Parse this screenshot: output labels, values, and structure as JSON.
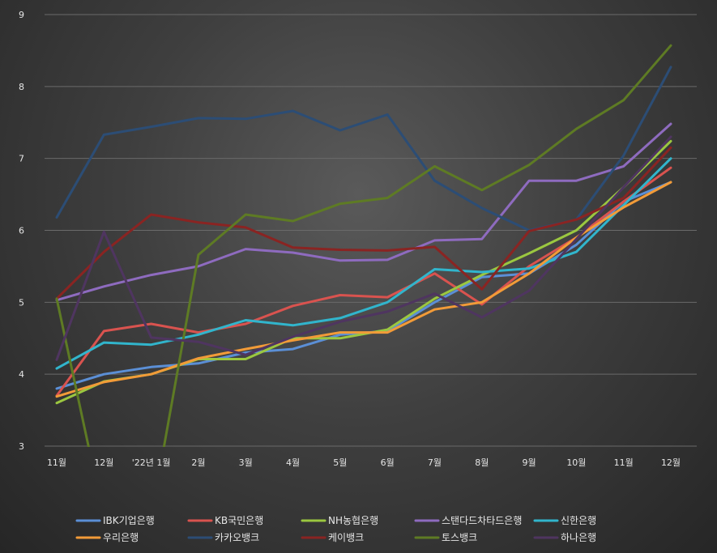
{
  "chart_data": {
    "type": "line",
    "title": "",
    "xlabel": "",
    "ylabel": "",
    "ylim": [
      3,
      9
    ],
    "yticks": [
      "3",
      "4",
      "5",
      "6",
      "7",
      "8",
      "9"
    ],
    "categories": [
      "11월",
      "12월",
      "'22년 1월",
      "2월",
      "3월",
      "4월",
      "5월",
      "6월",
      "7월",
      "8월",
      "9월",
      "10월",
      "11월",
      "12월"
    ],
    "grid": true,
    "legend_position": "bottom",
    "series": [
      {
        "name": "IBK기업은행",
        "color": "#5b8fd6",
        "values": [
          3.8,
          4.0,
          4.1,
          4.15,
          4.3,
          4.35,
          4.55,
          4.6,
          5.0,
          5.35,
          5.4,
          5.8,
          6.4,
          6.67
        ]
      },
      {
        "name": "KB국민은행",
        "color": "#d9534f",
        "values": [
          3.7,
          4.6,
          4.7,
          4.58,
          4.7,
          4.95,
          5.1,
          5.07,
          5.4,
          4.97,
          5.5,
          5.9,
          6.4,
          6.87
        ]
      },
      {
        "name": "NH농협은행",
        "color": "#9bc740",
        "values": [
          3.6,
          3.9,
          4.0,
          4.21,
          4.21,
          4.5,
          4.5,
          4.62,
          5.05,
          5.38,
          5.68,
          6.0,
          6.6,
          7.24
        ]
      },
      {
        "name": "스탠다드차타드은행",
        "color": "#8e6bbf",
        "values": [
          5.03,
          5.22,
          5.38,
          5.5,
          5.74,
          5.69,
          5.58,
          5.59,
          5.86,
          5.88,
          6.69,
          6.69,
          6.89,
          7.48
        ]
      },
      {
        "name": "신한은행",
        "color": "#31b5cc",
        "values": [
          4.08,
          4.44,
          4.41,
          4.55,
          4.75,
          4.68,
          4.78,
          5.0,
          5.46,
          5.42,
          5.47,
          5.7,
          6.35,
          7.0
        ]
      },
      {
        "name": "우리은행",
        "color": "#f29b38",
        "values": [
          3.69,
          3.89,
          4.0,
          4.22,
          4.35,
          4.47,
          4.58,
          4.58,
          4.9,
          5.0,
          5.4,
          5.9,
          6.32,
          6.67
        ]
      },
      {
        "name": "카카오뱅크",
        "color": "#2c4d75",
        "values": [
          6.18,
          7.33,
          7.44,
          7.56,
          7.55,
          7.66,
          7.39,
          7.61,
          6.69,
          6.31,
          6.0,
          6.15,
          7.04,
          8.27
        ]
      },
      {
        "name": "케이뱅크",
        "color": "#8a2422",
        "values": [
          5.05,
          5.7,
          6.22,
          6.11,
          6.04,
          5.76,
          5.73,
          5.72,
          5.77,
          5.18,
          5.99,
          6.15,
          6.45,
          7.15
        ]
      },
      {
        "name": "토스뱅크",
        "color": "#5e7b24",
        "values": [
          5.05,
          2.0,
          2.0,
          5.66,
          6.22,
          6.13,
          6.37,
          6.45,
          6.89,
          6.56,
          6.91,
          7.41,
          7.81,
          8.57
        ]
      },
      {
        "name": "하나은행",
        "color": "#4f3560",
        "values": [
          4.2,
          5.98,
          4.51,
          4.45,
          4.27,
          4.52,
          4.73,
          4.87,
          5.12,
          4.79,
          5.16,
          5.88,
          6.6,
          7.3
        ]
      }
    ]
  }
}
